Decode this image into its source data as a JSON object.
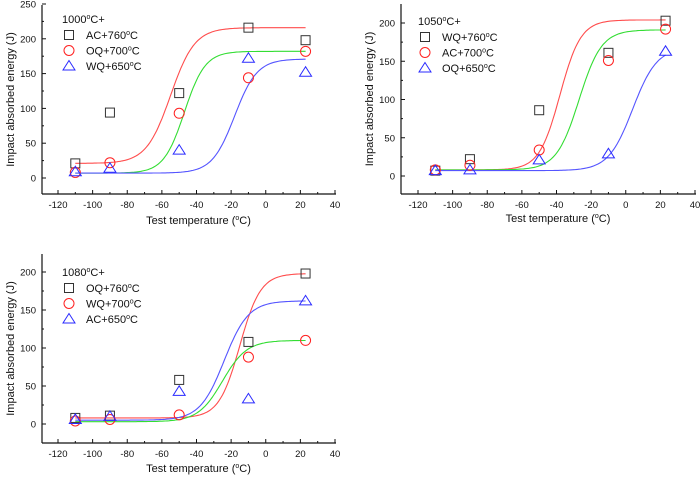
{
  "chart_data": [
    {
      "type": "scatter",
      "title": "",
      "legend_title": "1000°C+",
      "legend_position": "top-left",
      "xlabel": "Test temperature (°C)",
      "ylabel": "Impact absorbed energy (J)",
      "xlim": [
        -130,
        40
      ],
      "ylim": [
        -25,
        250
      ],
      "xticks": [
        -120,
        -100,
        -80,
        -60,
        -40,
        -20,
        0,
        20,
        40
      ],
      "yticks": [
        0,
        50,
        100,
        150,
        200,
        250
      ],
      "grid": false,
      "x": [
        -110,
        -90,
        -50,
        -10,
        23
      ],
      "series": [
        {
          "name": "AC+760°C",
          "marker": "square",
          "color": "#333333",
          "values": [
            21,
            94,
            122,
            216,
            198
          ],
          "fit": {
            "color": "#ff4d4d",
            "lower": 21,
            "upper": 216,
            "center": -55,
            "width": 7
          }
        },
        {
          "name": "OQ+700°C",
          "marker": "circle",
          "color": "#ff2020",
          "values": [
            8,
            22,
            93,
            144,
            182
          ],
          "fit": {
            "color": "#33dd33",
            "lower": 7,
            "upper": 182,
            "center": -47,
            "width": 6
          }
        },
        {
          "name": "WQ+650°C",
          "marker": "triangle",
          "color": "#2a2aff",
          "values": [
            9,
            14,
            40,
            172,
            152
          ],
          "fit": {
            "color": "#5555ff",
            "lower": 7,
            "upper": 171,
            "center": -18,
            "width": 6.5
          }
        }
      ]
    },
    {
      "type": "scatter",
      "title": "",
      "legend_title": "1050°C+",
      "legend_position": "top-left",
      "xlabel": "Test temperature (°C)",
      "ylabel": "Impact absorbed energy (J)",
      "xlim": [
        -130,
        40
      ],
      "ylim": [
        -24,
        225
      ],
      "xticks": [
        -120,
        -100,
        -80,
        -60,
        -40,
        -20,
        0,
        20,
        40
      ],
      "yticks": [
        0,
        50,
        100,
        150,
        200
      ],
      "grid": false,
      "x": [
        -110,
        -90,
        -50,
        -10,
        23
      ],
      "series": [
        {
          "name": "WQ+760°C",
          "marker": "square",
          "color": "#333333",
          "values": [
            7,
            22,
            86,
            161,
            203
          ],
          "fit": {
            "color": "#ff4d4d",
            "lower": 8,
            "upper": 204,
            "center": -38,
            "width": 6
          }
        },
        {
          "name": "AC+700°C",
          "marker": "circle",
          "color": "#ff2020",
          "values": [
            8,
            14,
            34,
            151,
            192
          ],
          "fit": {
            "color": "#33dd33",
            "lower": 8,
            "upper": 191,
            "center": -27,
            "width": 6.5
          }
        },
        {
          "name": "OQ+650°C",
          "marker": "triangle",
          "color": "#2a2aff",
          "values": [
            7,
            8,
            21,
            29,
            163
          ],
          "fit": {
            "color": "#5555ff",
            "lower": 7,
            "upper": 168,
            "center": 4,
            "width": 7
          }
        }
      ]
    },
    {
      "type": "scatter",
      "title": "",
      "legend_title": "1080°C+",
      "legend_position": "top-left",
      "xlabel": "Test temperature (°C)",
      "ylabel": "Impact absorbed energy (J)",
      "xlim": [
        -130,
        40
      ],
      "ylim": [
        -25,
        225
      ],
      "xticks": [
        -120,
        -100,
        -80,
        -60,
        -40,
        -20,
        0,
        20,
        40
      ],
      "yticks": [
        0,
        50,
        100,
        150,
        200
      ],
      "grid": false,
      "x": [
        -110,
        -90,
        -50,
        -10,
        23
      ],
      "series": [
        {
          "name": "OQ+760°C",
          "marker": "square",
          "color": "#333333",
          "values": [
            8,
            11,
            58,
            108,
            198
          ],
          "fit": {
            "color": "#ff4d4d",
            "lower": 8,
            "upper": 198,
            "center": -15,
            "width": 6
          }
        },
        {
          "name": "WQ+700°C",
          "marker": "circle",
          "color": "#ff2020",
          "values": [
            4,
            6,
            12,
            88,
            110
          ],
          "fit": {
            "color": "#33dd33",
            "lower": 3,
            "upper": 110,
            "center": -25,
            "width": 7
          }
        },
        {
          "name": "AC+650°C",
          "marker": "triangle",
          "color": "#2a2aff",
          "values": [
            6,
            10,
            43,
            33,
            162
          ],
          "fit": {
            "color": "#5555ff",
            "lower": 5,
            "upper": 162,
            "center": -24,
            "width": 7
          }
        }
      ]
    }
  ]
}
